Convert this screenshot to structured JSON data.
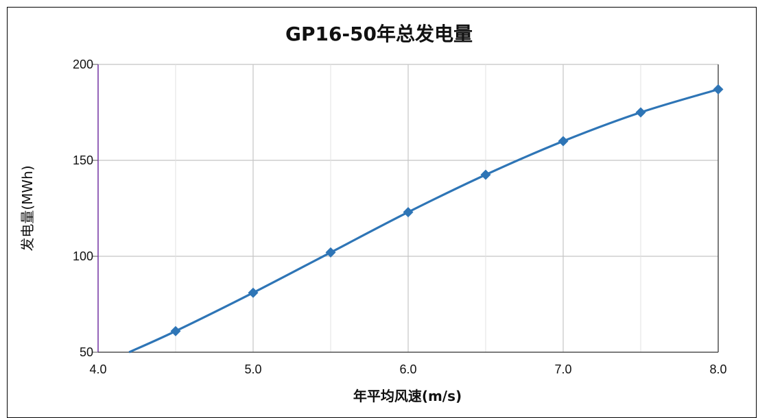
{
  "chart_data": {
    "type": "line",
    "title": "GP16-50年总发电量",
    "xlabel": "年平均风速(m/s)",
    "ylabel": "发电量(MWh)",
    "xlim": [
      4.0,
      8.0
    ],
    "ylim": [
      50,
      200
    ],
    "xticks": [
      "4.0",
      "5.0",
      "6.0",
      "7.0",
      "8.0"
    ],
    "yticks": [
      "50",
      "100",
      "150",
      "200"
    ],
    "grid": true,
    "legend": "none",
    "series": [
      {
        "color": "#2E75B6",
        "marker": "diamond",
        "x": [
          4.5,
          5.0,
          5.5,
          6.0,
          6.5,
          7.0,
          7.5,
          8.0
        ],
        "y": [
          61,
          81,
          102,
          123,
          142.5,
          160,
          175,
          187
        ]
      }
    ],
    "line_start": {
      "x": 4.2,
      "y": 50
    }
  }
}
